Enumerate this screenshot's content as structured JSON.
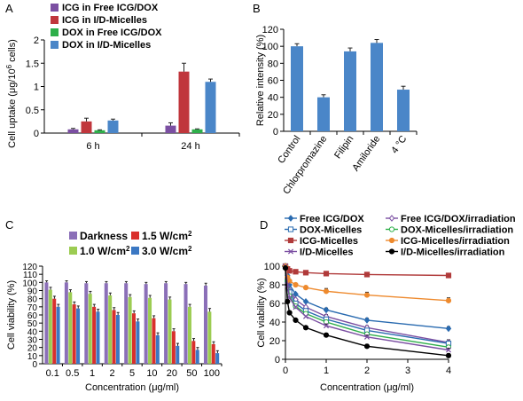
{
  "panels": [
    "A",
    "B",
    "C",
    "D"
  ],
  "chart_data": [
    {
      "id": "A",
      "type": "bar",
      "categories": [
        "6 h",
        "24 h"
      ],
      "ylabel_parts": [
        "Cell uptake (μg/10",
        "6",
        " cells)"
      ],
      "ylim": [
        0,
        2
      ],
      "yticks": [
        "0",
        "0.5",
        "1",
        "1.5",
        "2"
      ],
      "legend_placement": "top-left",
      "series": [
        {
          "name": "ICG in Free ICG/DOX",
          "color": "#7b4fa2",
          "values": [
            0.08,
            0.16
          ],
          "errors": [
            0.02,
            0.06
          ]
        },
        {
          "name": "ICG in I/D-Micelles",
          "color": "#c0363c",
          "values": [
            0.25,
            1.32
          ],
          "errors": [
            0.07,
            0.18
          ]
        },
        {
          "name": "DOX in Free ICG/DOX",
          "color": "#2eaf4a",
          "values": [
            0.06,
            0.08
          ],
          "errors": [
            0.01,
            0.01
          ]
        },
        {
          "name": "DOX in I/D-Micelles",
          "color": "#4a86c8",
          "values": [
            0.27,
            1.1
          ],
          "errors": [
            0.03,
            0.06
          ]
        }
      ]
    },
    {
      "id": "B",
      "type": "bar",
      "categories": [
        "Control",
        "Chlorpromazine",
        "Filipin",
        "Amiloride",
        "4 °C"
      ],
      "ylabel": "Relative intensity (%)",
      "ylim": [
        0,
        120
      ],
      "yticks": [
        "0",
        "20",
        "40",
        "60",
        "80",
        "100",
        "120"
      ],
      "series": [
        {
          "color": "#4a86c8",
          "values": [
            100,
            40,
            94,
            104,
            49
          ],
          "errors": [
            3,
            3,
            4,
            4,
            4
          ]
        }
      ]
    },
    {
      "id": "C",
      "type": "bar",
      "categories": [
        "0.1",
        "0.5",
        "1",
        "2",
        "5",
        "10",
        "20",
        "50",
        "100"
      ],
      "xlabel": "Concentration (μg/ml)",
      "ylabel": "Cell viability (%)",
      "ylim": [
        0,
        120
      ],
      "yticks": [
        "0",
        "10",
        "20",
        "30",
        "40",
        "50",
        "60",
        "70",
        "80",
        "90",
        "100",
        "110",
        "120"
      ],
      "legend_placement": "top",
      "series": [
        {
          "name": "Darkness",
          "color": "#8b6fb8",
          "values": [
            100,
            100,
            99,
            99,
            99,
            98,
            99,
            98,
            96
          ],
          "errors": [
            2,
            2,
            2,
            2,
            2,
            2,
            2,
            2,
            3
          ]
        },
        {
          "name": "1.0 W/cm2",
          "name_parts": [
            "1.0 W/cm",
            "2"
          ],
          "color": "#9ccc52",
          "values": [
            91,
            88,
            86,
            84,
            82,
            81,
            79,
            70,
            64
          ],
          "errors": [
            3,
            3,
            3,
            3,
            3,
            3,
            3,
            3,
            4
          ]
        },
        {
          "name": "1.5 W/cm2",
          "name_parts": [
            "1.5 W/cm",
            "2"
          ],
          "color": "#d9302c",
          "values": [
            80,
            73,
            70,
            66,
            62,
            56,
            40,
            28,
            24
          ],
          "errors": [
            3,
            3,
            3,
            3,
            3,
            3,
            3,
            3,
            3
          ]
        },
        {
          "name": "3.0 W/cm2",
          "name_parts": [
            "3.0 W/cm",
            "2"
          ],
          "color": "#3b78c3",
          "values": [
            70,
            68,
            64,
            60,
            52,
            35,
            22,
            17,
            13
          ],
          "errors": [
            3,
            3,
            3,
            3,
            3,
            3,
            3,
            3,
            3
          ]
        }
      ]
    },
    {
      "id": "D",
      "type": "line",
      "xlabel": "Concentration (μg/ml)",
      "ylabel": "Cell viability (%)",
      "xlim": [
        0,
        4
      ],
      "ylim": [
        0,
        100
      ],
      "xticks": [
        "0",
        "1",
        "2",
        "3",
        "4"
      ],
      "yticks": [
        "0",
        "20",
        "40",
        "60",
        "80",
        "100"
      ],
      "legend_placement": "top",
      "x": [
        0,
        0.05,
        0.1,
        0.25,
        0.5,
        1,
        2,
        4
      ],
      "series": [
        {
          "name": "Free ICG/DOX",
          "color": "#2a6bb0",
          "marker": "diamond",
          "filled": true,
          "values": [
            100,
            90,
            80,
            70,
            62,
            53,
            42,
            33
          ],
          "errors": [
            2,
            2,
            2,
            2,
            2,
            2,
            2,
            2
          ]
        },
        {
          "name": "Free ICG/DOX/irradiation",
          "color": "#7b4fa2",
          "marker": "diamond",
          "filled": false,
          "values": [
            100,
            86,
            74,
            64,
            56,
            46,
            34,
            18
          ],
          "errors": [
            2,
            2,
            2,
            2,
            2,
            2,
            2,
            3
          ]
        },
        {
          "name": "DOX-Micelles",
          "color": "#2a6bb0",
          "marker": "square",
          "filled": false,
          "values": [
            100,
            85,
            72,
            60,
            52,
            43,
            31,
            17
          ],
          "errors": [
            2,
            2,
            2,
            2,
            2,
            2,
            2,
            2
          ]
        },
        {
          "name": "DOX-Micelles/irradiation",
          "color": "#2eaf4a",
          "marker": "circle",
          "filled": false,
          "values": [
            100,
            84,
            68,
            57,
            49,
            40,
            27,
            13
          ],
          "errors": [
            2,
            2,
            2,
            2,
            2,
            2,
            2,
            2
          ]
        },
        {
          "name": "ICG-Micelles",
          "color": "#b03a3a",
          "marker": "square",
          "filled": true,
          "values": [
            100,
            97,
            95,
            94,
            93,
            92,
            91,
            90
          ],
          "errors": [
            2,
            2,
            2,
            2,
            2,
            2,
            2,
            2
          ]
        },
        {
          "name": "ICG-Micelles/irradiation",
          "color": "#ee8a2e",
          "marker": "circle",
          "filled": true,
          "values": [
            100,
            88,
            84,
            80,
            77,
            73,
            69,
            63
          ],
          "errors": [
            2,
            2,
            2,
            2,
            2,
            3,
            3,
            3
          ]
        },
        {
          "name": "I/D-Micelles",
          "color": "#7b4fa2",
          "marker": "x",
          "filled": false,
          "values": [
            100,
            80,
            66,
            56,
            46,
            36,
            24,
            10
          ],
          "errors": [
            2,
            2,
            2,
            2,
            2,
            2,
            2,
            2
          ]
        },
        {
          "name": "I/D-Micelles/irradiation",
          "color": "#000000",
          "marker": "circle",
          "filled": true,
          "values": [
            98,
            62,
            50,
            42,
            34,
            26,
            14,
            4
          ],
          "errors": [
            2,
            2,
            2,
            2,
            2,
            2,
            2,
            2
          ]
        }
      ]
    }
  ]
}
